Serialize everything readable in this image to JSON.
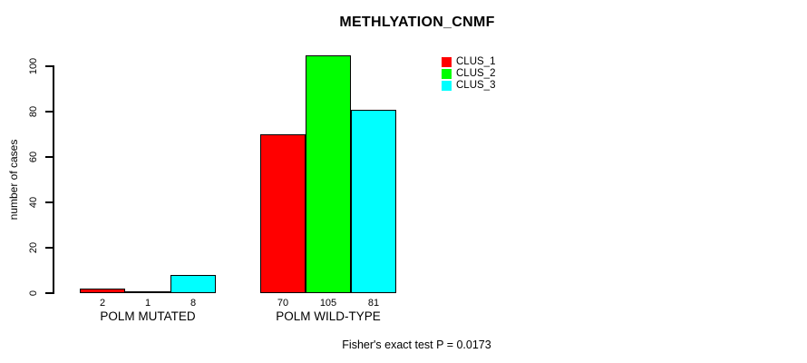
{
  "chart_data": {
    "type": "bar",
    "title": "METHLYATION_CNMF",
    "xlabel": "",
    "ylabel": "number of cases",
    "categories": [
      "POLM MUTATED",
      "POLM WILD-TYPE"
    ],
    "series": [
      {
        "name": "CLUS_1",
        "color": "#ff0000",
        "values": [
          2,
          70
        ]
      },
      {
        "name": "CLUS_2",
        "color": "#00ff00",
        "values": [
          1,
          105
        ]
      },
      {
        "name": "CLUS_3",
        "color": "#00ffff",
        "values": [
          8,
          81
        ]
      }
    ],
    "bar_value_labels": [
      [
        2,
        1,
        8
      ],
      [
        70,
        105,
        81
      ]
    ],
    "yticks": [
      0,
      20,
      40,
      60,
      80,
      100
    ],
    "ylim": [
      0,
      105
    ],
    "grid": false,
    "legend_position": "top-right",
    "bar_border_color": "#000000",
    "annotation": "Fisher's exact test P = 0.0173"
  }
}
